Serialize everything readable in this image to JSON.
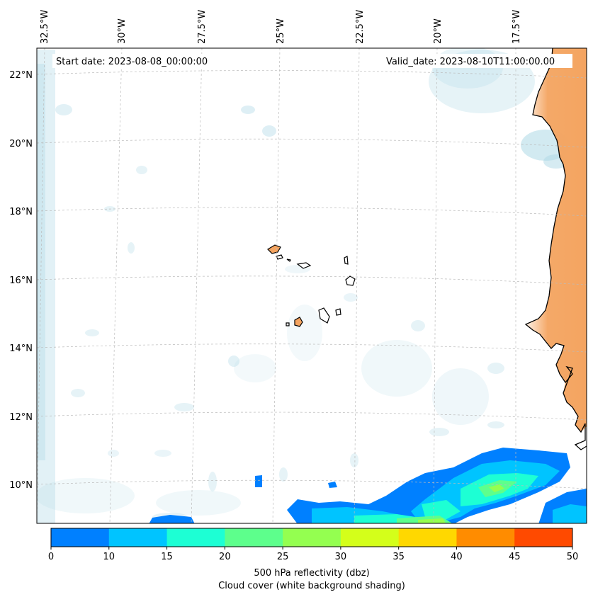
{
  "annotations": {
    "start_date": "Start date: 2023-08-08_00:00:00",
    "valid_date": "Valid_date: 2023-08-10T11:00:00.00"
  },
  "longitude_labels": [
    "32.5°W",
    "30°W",
    "27.5°W",
    "25°W",
    "22.5°W",
    "20°W",
    "17.5°W"
  ],
  "latitude_labels": [
    "22°N",
    "20°N",
    "18°N",
    "16°N",
    "14°N",
    "12°N",
    "10°N"
  ],
  "colorbar": {
    "ticks": [
      "0",
      "10",
      "15",
      "20",
      "25",
      "30",
      "35",
      "40",
      "45",
      "50"
    ],
    "colors": [
      "#0080ff",
      "#00c4ff",
      "#1dffd4",
      "#5dff8c",
      "#94ff50",
      "#d4ff1a",
      "#ffd800",
      "#ff8c00",
      "#ff4a00"
    ],
    "label_line1": "500 hPa reflectivity (dbz)",
    "label_line2": "Cloud cover (white background shading)"
  },
  "colors": {
    "land": "#f4a460",
    "cloud": "#add8e6",
    "coastline": "#000000",
    "gridline": "#b0b0b0"
  }
}
